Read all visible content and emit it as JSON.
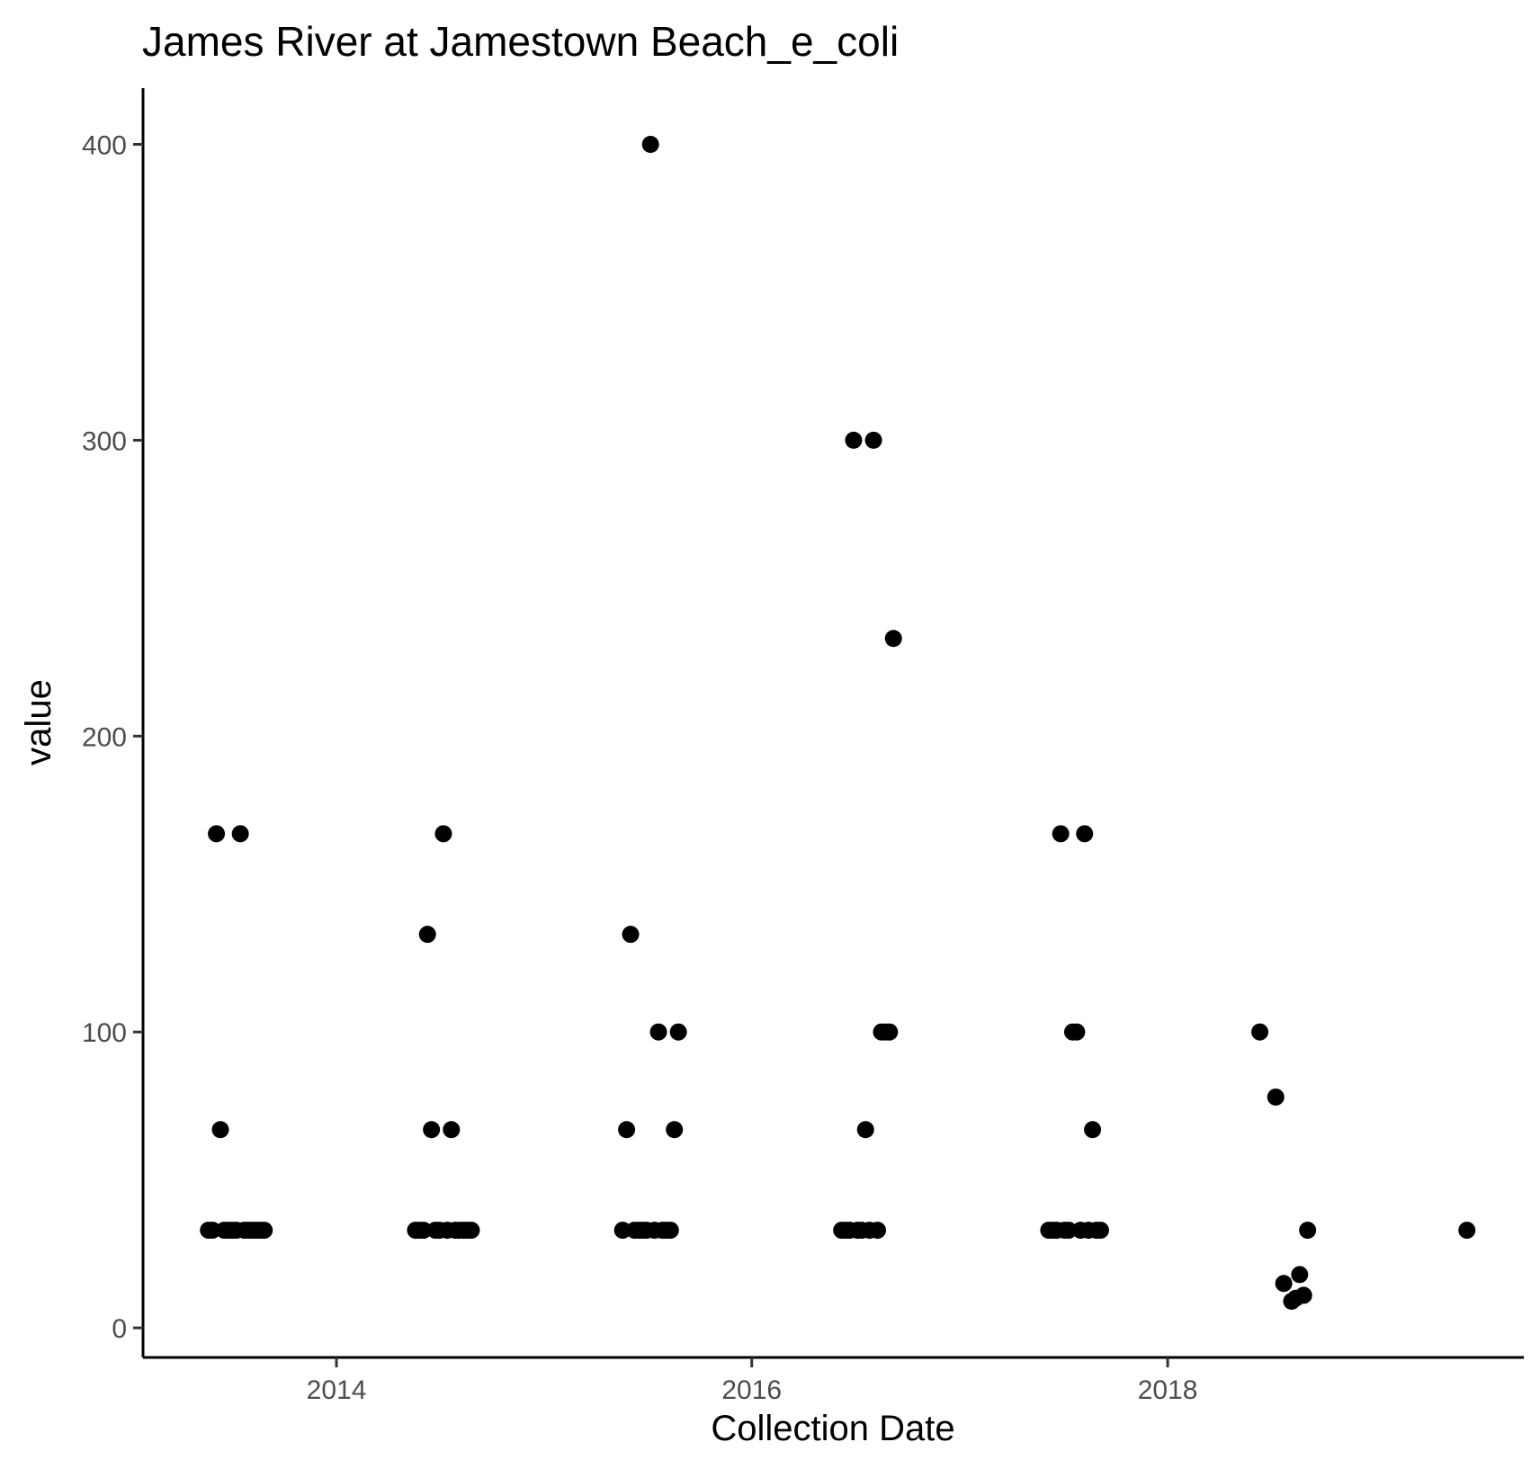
{
  "chart_data": {
    "type": "scatter",
    "title": "James River at Jamestown Beach_e_coli",
    "xlabel": "Collection Date",
    "ylabel": "value",
    "x_axis": {
      "kind": "date",
      "range": [
        "2013-01-26",
        "2019-09-19"
      ],
      "ticks": [
        "2014-01-01",
        "2016-01-01",
        "2018-01-01"
      ],
      "tick_labels": [
        "2014",
        "2016",
        "2018"
      ]
    },
    "y_axis": {
      "range": [
        -10,
        419
      ],
      "ticks": [
        0,
        100,
        200,
        300,
        400
      ],
      "tick_labels": [
        "0",
        "100",
        "200",
        "300",
        "400"
      ]
    },
    "grid": false,
    "legend": "none",
    "point_color": "#000000",
    "points": [
      {
        "x": "2013-05-21",
        "y": 33
      },
      {
        "x": "2013-05-28",
        "y": 33
      },
      {
        "x": "2013-06-04",
        "y": 167
      },
      {
        "x": "2013-06-11",
        "y": 67
      },
      {
        "x": "2013-06-18",
        "y": 33
      },
      {
        "x": "2013-06-25",
        "y": 33
      },
      {
        "x": "2013-07-02",
        "y": 33
      },
      {
        "x": "2013-07-09",
        "y": 33
      },
      {
        "x": "2013-07-16",
        "y": 167
      },
      {
        "x": "2013-07-23",
        "y": 33
      },
      {
        "x": "2013-07-30",
        "y": 33
      },
      {
        "x": "2013-08-06",
        "y": 33
      },
      {
        "x": "2013-08-13",
        "y": 33
      },
      {
        "x": "2013-08-20",
        "y": 33
      },
      {
        "x": "2013-08-27",
        "y": 33
      },
      {
        "x": "2014-05-20",
        "y": 33
      },
      {
        "x": "2014-05-27",
        "y": 33
      },
      {
        "x": "2014-06-03",
        "y": 33
      },
      {
        "x": "2014-06-10",
        "y": 133
      },
      {
        "x": "2014-06-17",
        "y": 67
      },
      {
        "x": "2014-06-24",
        "y": 33
      },
      {
        "x": "2014-07-01",
        "y": 33
      },
      {
        "x": "2014-07-08",
        "y": 167
      },
      {
        "x": "2014-07-15",
        "y": 33
      },
      {
        "x": "2014-07-22",
        "y": 67
      },
      {
        "x": "2014-07-29",
        "y": 33
      },
      {
        "x": "2014-08-05",
        "y": 33
      },
      {
        "x": "2014-08-12",
        "y": 33
      },
      {
        "x": "2014-08-19",
        "y": 33
      },
      {
        "x": "2014-08-26",
        "y": 33
      },
      {
        "x": "2015-05-19",
        "y": 33
      },
      {
        "x": "2015-05-26",
        "y": 67
      },
      {
        "x": "2015-06-02",
        "y": 133
      },
      {
        "x": "2015-06-09",
        "y": 33
      },
      {
        "x": "2015-06-16",
        "y": 33
      },
      {
        "x": "2015-06-23",
        "y": 33
      },
      {
        "x": "2015-06-30",
        "y": 33
      },
      {
        "x": "2015-07-07",
        "y": 400
      },
      {
        "x": "2015-07-14",
        "y": 33
      },
      {
        "x": "2015-07-21",
        "y": 100
      },
      {
        "x": "2015-07-28",
        "y": 33
      },
      {
        "x": "2015-08-04",
        "y": 33
      },
      {
        "x": "2015-08-11",
        "y": 33
      },
      {
        "x": "2015-08-18",
        "y": 67
      },
      {
        "x": "2015-08-25",
        "y": 100
      },
      {
        "x": "2016-06-07",
        "y": 33
      },
      {
        "x": "2016-06-14",
        "y": 33
      },
      {
        "x": "2016-06-21",
        "y": 33
      },
      {
        "x": "2016-06-28",
        "y": 300
      },
      {
        "x": "2016-07-05",
        "y": 33
      },
      {
        "x": "2016-07-12",
        "y": 33
      },
      {
        "x": "2016-07-19",
        "y": 67
      },
      {
        "x": "2016-07-26",
        "y": 33
      },
      {
        "x": "2016-08-02",
        "y": 300
      },
      {
        "x": "2016-08-09",
        "y": 33
      },
      {
        "x": "2016-08-16",
        "y": 100
      },
      {
        "x": "2016-08-23",
        "y": 100
      },
      {
        "x": "2016-08-30",
        "y": 100
      },
      {
        "x": "2016-09-06",
        "y": 233
      },
      {
        "x": "2017-06-06",
        "y": 33
      },
      {
        "x": "2017-06-13",
        "y": 33
      },
      {
        "x": "2017-06-20",
        "y": 33
      },
      {
        "x": "2017-06-27",
        "y": 167
      },
      {
        "x": "2017-07-04",
        "y": 33
      },
      {
        "x": "2017-07-11",
        "y": 33
      },
      {
        "x": "2017-07-18",
        "y": 100
      },
      {
        "x": "2017-07-25",
        "y": 100
      },
      {
        "x": "2017-08-01",
        "y": 33
      },
      {
        "x": "2017-08-08",
        "y": 167
      },
      {
        "x": "2017-08-15",
        "y": 33
      },
      {
        "x": "2017-08-22",
        "y": 67
      },
      {
        "x": "2017-08-29",
        "y": 33
      },
      {
        "x": "2017-09-05",
        "y": 33
      },
      {
        "x": "2018-06-12",
        "y": 100
      },
      {
        "x": "2018-07-10",
        "y": 78
      },
      {
        "x": "2018-07-24",
        "y": 15
      },
      {
        "x": "2018-08-07",
        "y": 9
      },
      {
        "x": "2018-08-14",
        "y": 10
      },
      {
        "x": "2018-08-21",
        "y": 18
      },
      {
        "x": "2018-08-28",
        "y": 11
      },
      {
        "x": "2018-09-04",
        "y": 33
      },
      {
        "x": "2019-06-11",
        "y": 33
      }
    ]
  }
}
